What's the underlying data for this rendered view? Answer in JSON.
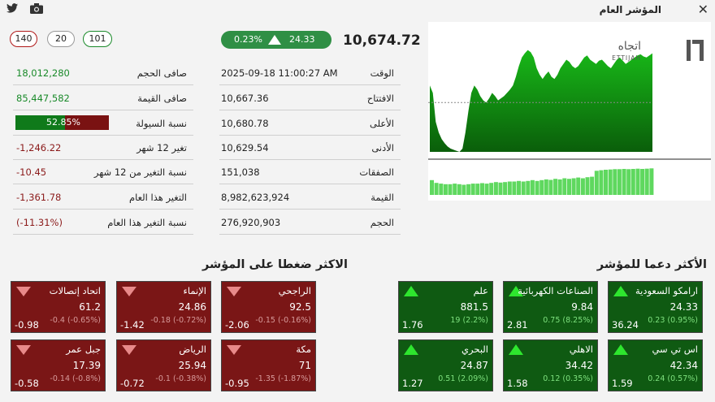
{
  "window": {
    "title": "المؤشر العام",
    "close_icon": "close-icon",
    "twitter_icon": "twitter-icon",
    "camera_icon": "camera-icon"
  },
  "counters": {
    "declines": "140",
    "unchanged": "20",
    "advances": "101",
    "colors": {
      "declines": "#b01818",
      "unchanged": "#666666",
      "advances": "#1a8a2a"
    }
  },
  "index": {
    "value": "10,674.72",
    "change": "24.33",
    "change_pct": "0.23%",
    "direction": "up"
  },
  "details": [
    {
      "label": "الوقت",
      "value": "2025-09-18 11:00:27 AM"
    },
    {
      "label": "الافتتاح",
      "value": "10,667.36"
    },
    {
      "label": "الأعلى",
      "value": "10,680.78"
    },
    {
      "label": "الأدنى",
      "value": "10,629.54"
    },
    {
      "label": "الصفقات",
      "value": "151,038"
    },
    {
      "label": "القيمة",
      "value": "8,982,623,924"
    },
    {
      "label": "الحجم",
      "value": "276,920,903"
    }
  ],
  "stats": [
    {
      "label": "صافى الحجم",
      "value": "18,012,280",
      "tone": "pos"
    },
    {
      "label": "صافى القيمة",
      "value": "85,447,582",
      "tone": "pos"
    },
    {
      "label": "نسبة السيولة",
      "value": "52.85%",
      "tone": "bar",
      "fraction": 0.5285
    },
    {
      "label": "تغير 12 شهر",
      "value": "-1,246.22",
      "tone": "neg"
    },
    {
      "label": "نسبة التغير من 12 شهر",
      "value": "-10.45",
      "tone": "neg"
    },
    {
      "label": "التغير هذا العام",
      "value": "-1,361.78",
      "tone": "neg"
    },
    {
      "label": "نسبة التغير هذا العام",
      "value": "(-11.31%)",
      "tone": "neg"
    }
  ],
  "chart": {
    "logo_ar": "اتجاه",
    "logo_en": "ETTIJAH",
    "logo_icon": "ettijah-logo-icon",
    "colors": {
      "area_top": "#18b818",
      "area_bottom": "#0a5e0a",
      "volume": "#5fd85f"
    },
    "price": [
      0.62,
      0.55,
      0.28,
      0.18,
      0.12,
      0.08,
      0.05,
      0.03,
      0.02,
      0.01,
      0.0,
      0.03,
      0.18,
      0.38,
      0.55,
      0.62,
      0.58,
      0.52,
      0.48,
      0.46,
      0.5,
      0.55,
      0.52,
      0.48,
      0.5,
      0.52,
      0.55,
      0.58,
      0.62,
      0.7,
      0.8,
      0.88,
      0.92,
      0.95,
      0.93,
      0.88,
      0.78,
      0.72,
      0.68,
      0.72,
      0.75,
      0.7,
      0.68,
      0.72,
      0.78,
      0.82,
      0.86,
      0.84,
      0.8,
      0.78,
      0.8,
      0.84,
      0.88,
      0.9,
      0.86,
      0.84,
      0.82,
      0.85,
      0.86,
      0.83,
      0.8,
      0.78,
      0.82,
      0.86,
      0.88,
      0.85,
      0.82,
      0.84,
      0.86,
      0.88,
      0.9,
      0.91,
      0.89,
      0.88,
      0.9,
      0.92
    ],
    "prev_close": 0.46,
    "volume": [
      0.55,
      0.45,
      0.42,
      0.4,
      0.4,
      0.42,
      0.4,
      0.38,
      0.4,
      0.42,
      0.42,
      0.44,
      0.42,
      0.45,
      0.48,
      0.46,
      0.48,
      0.5,
      0.5,
      0.52,
      0.5,
      0.52,
      0.55,
      0.52,
      0.55,
      0.58,
      0.56,
      0.6,
      0.58,
      0.62,
      0.6,
      0.62,
      0.65,
      0.62,
      0.66,
      0.68,
      0.9,
      0.92,
      0.94,
      0.95,
      0.96,
      0.96,
      0.97,
      0.96,
      0.97,
      0.98,
      0.97,
      0.98,
      0.99
    ]
  },
  "supporters": {
    "title": "الأكثر دعما للمؤشر",
    "tiles": [
      {
        "name": "ارامكو السعودية",
        "price": "24.33",
        "sub": "0.23 (0.95%)",
        "value": "36.24"
      },
      {
        "name": "الصناعات الكهربائية",
        "price": "9.84",
        "sub": "0.75 (8.25%)",
        "value": "2.81"
      },
      {
        "name": "علم",
        "price": "881.5",
        "sub": "19 (2.2%)",
        "value": "1.76"
      },
      {
        "name": "اس تي سي",
        "price": "42.34",
        "sub": "0.24 (0.57%)",
        "value": "1.59"
      },
      {
        "name": "الاهلي",
        "price": "34.42",
        "sub": "0.12 (0.35%)",
        "value": "1.58"
      },
      {
        "name": "البحري",
        "price": "24.87",
        "sub": "0.51 (2.09%)",
        "value": "1.27"
      }
    ]
  },
  "pressure": {
    "title": "الاكثر ضغطا على المؤشر",
    "tiles": [
      {
        "name": "الراجحي",
        "price": "92.5",
        "sub": "-0.15 (-0.16%)",
        "value": "-2.06"
      },
      {
        "name": "الإنماء",
        "price": "24.86",
        "sub": "-0.18 (-0.72%)",
        "value": "-1.42"
      },
      {
        "name": "اتحاد إتصالات",
        "price": "61.2",
        "sub": "-0.4 (-0.65%)",
        "value": "-0.98"
      },
      {
        "name": "مكة",
        "price": "71",
        "sub": "-1.35 (-1.87%)",
        "value": "-0.95"
      },
      {
        "name": "الرياض",
        "price": "25.94",
        "sub": "-0.1 (-0.38%)",
        "value": "-0.72"
      },
      {
        "name": "جبل عمر",
        "price": "17.39",
        "sub": "-0.14 (-0.8%)",
        "value": "-0.58"
      }
    ]
  }
}
